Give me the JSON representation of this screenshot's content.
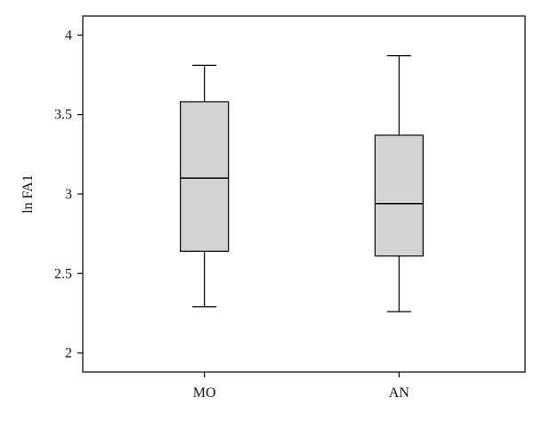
{
  "chart_data": {
    "type": "box",
    "ylabel": "ln FA1",
    "xlabel": "",
    "ylim": [
      1.88,
      4.12
    ],
    "yticks": [
      2,
      2.5,
      3,
      3.5,
      4
    ],
    "ytick_labels": [
      "2",
      "2.5",
      "3",
      "3.5",
      "4"
    ],
    "categories": [
      "MO",
      "AN"
    ],
    "boxes": [
      {
        "category": "MO",
        "min": 2.29,
        "q1": 2.64,
        "median": 3.1,
        "q3": 3.58,
        "max": 3.81
      },
      {
        "category": "AN",
        "min": 2.26,
        "q1": 2.61,
        "median": 2.94,
        "q3": 3.37,
        "max": 3.87
      }
    ],
    "grid": false,
    "box_fill": "#d3d3d3",
    "line_color": "#000000"
  }
}
